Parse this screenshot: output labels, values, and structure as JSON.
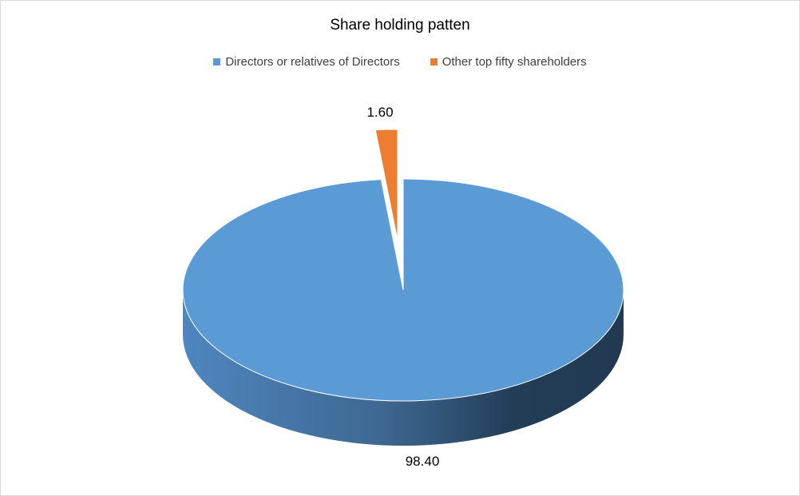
{
  "chart_data": {
    "type": "pie",
    "style": "3d-exploded",
    "title": "Share holding patten",
    "legend_position": "top",
    "categories": [
      "Directors or relatives of Directors",
      "Other top fifty shareholders"
    ],
    "values": [
      98.4,
      1.6
    ],
    "data_labels": [
      "98.40",
      "1.60"
    ],
    "colors": [
      "#5b9bd5",
      "#ed7d31"
    ],
    "exploded": [
      false,
      true
    ]
  }
}
